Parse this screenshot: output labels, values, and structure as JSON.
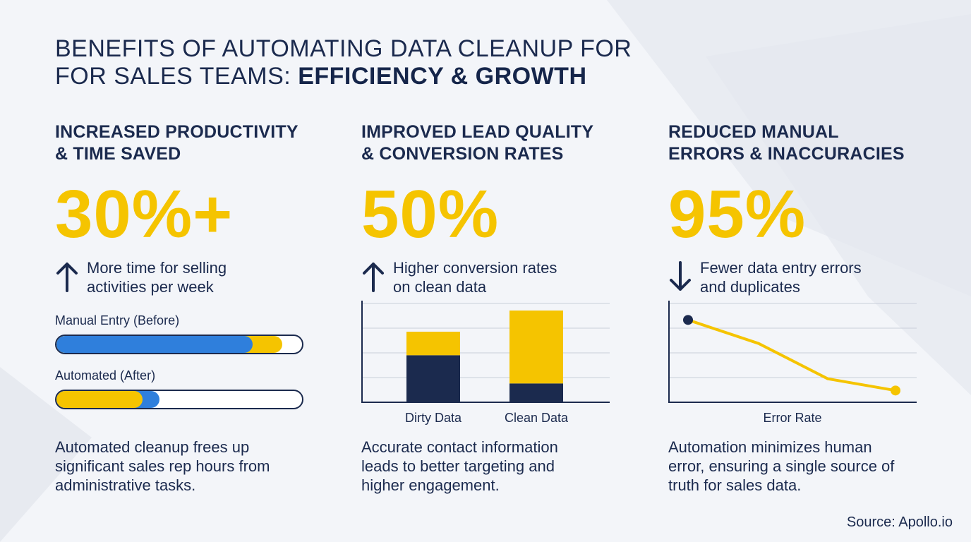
{
  "title": {
    "line1": "BENEFITS OF AUTOMATING DATA CLEANUP FOR",
    "line2_regular": "FOR SALES TEAMS: ",
    "line2_bold": "EFFICIENCY & GROWTH"
  },
  "colors": {
    "navy": "#1b2a4e",
    "yellow": "#f5c400",
    "blue": "#2f7fdc",
    "grid": "#c9ced9"
  },
  "columns": [
    {
      "heading_line1": "INCREASED PRODUCTIVITY",
      "heading_line2": "& TIME SAVED",
      "stat": "30%+",
      "arrow": "arrow-up-icon",
      "desc_line1": "More time for selling",
      "desc_line2": "activities per week",
      "note_line1": "Automated cleanup frees up",
      "note_line2": "significant sales rep hours from",
      "note_line3": "administrative tasks."
    },
    {
      "heading_line1": "IMPROVED LEAD QUALITY",
      "heading_line2": "& CONVERSION RATES",
      "stat": "50%",
      "arrow": "arrow-up-icon",
      "desc_line1": "Higher conversion rates",
      "desc_line2": "on clean data",
      "note_line1": "Accurate contact information",
      "note_line2": "leads to better targeting and",
      "note_line3": "higher engagement."
    },
    {
      "heading_line1": "REDUCED MANUAL",
      "heading_line2": "ERRORS & INACCURACIES",
      "stat": "95%",
      "arrow": "arrow-down-icon",
      "desc_line1": "Fewer data entry errors",
      "desc_line2": "and duplicates",
      "note_line1": "Automation minimizes human",
      "note_line2": "error, ensuring a single source of",
      "note_line3": "truth for sales data."
    }
  ],
  "chart_data": [
    {
      "type": "bar",
      "orientation": "horizontal-progress",
      "categories": [
        "Manual Entry (Before)",
        "Automated (After)"
      ],
      "series": [
        {
          "values": [
            0.8,
            0.42
          ]
        },
        {
          "values": [
            0.92,
            0.35
          ]
        }
      ],
      "xlim": [
        0,
        1
      ],
      "grid": false
    },
    {
      "type": "bar",
      "stacked": true,
      "categories": [
        "Dirty Data",
        "Clean Data"
      ],
      "series": [
        {
          "values": [
            2.0,
            0.8
          ]
        },
        {
          "values": [
            1.0,
            3.1
          ]
        }
      ],
      "ylim": [
        0,
        4.2
      ],
      "grid": true,
      "gridlines": 4
    },
    {
      "type": "line",
      "xlabel": "Error Rate",
      "x": [
        0,
        1,
        2,
        3
      ],
      "series": [
        {
          "values": [
            3.5,
            2.5,
            1.0,
            0.5
          ]
        }
      ],
      "ylim": [
        0,
        4.2
      ],
      "grid": true,
      "gridlines": 4
    }
  ],
  "source": "Source: Apollo.io"
}
